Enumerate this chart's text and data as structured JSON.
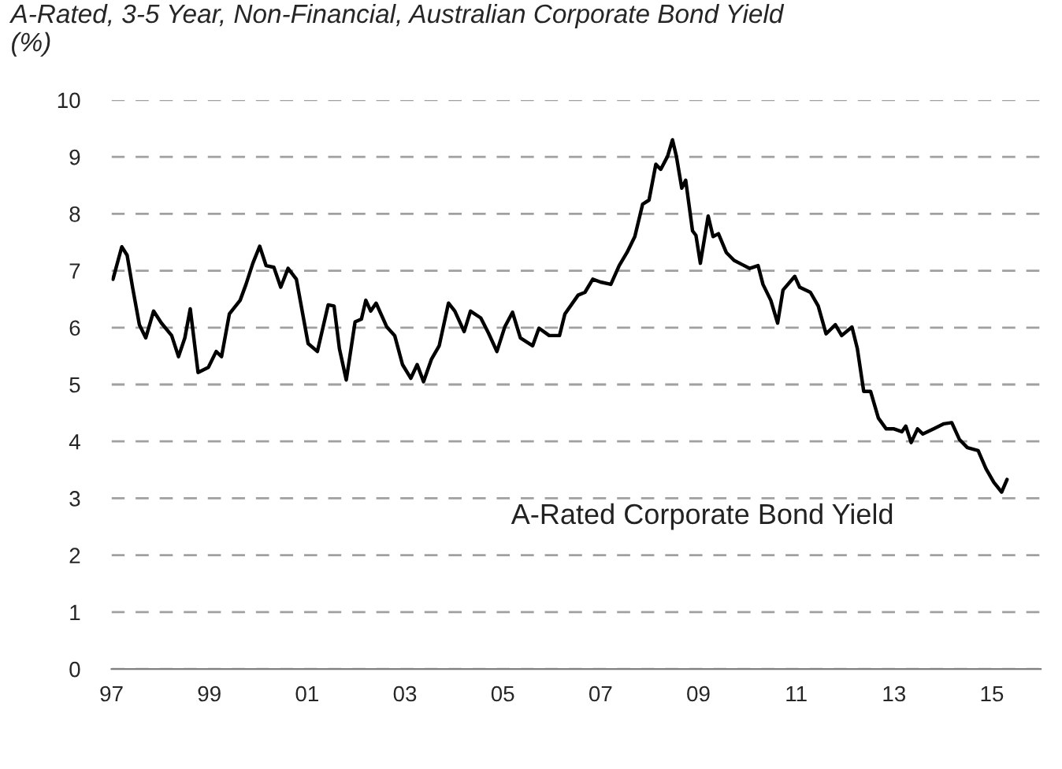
{
  "chart_data": {
    "type": "line",
    "title": "A-Rated, 3-5 Year, Non-Financial, Australian Corporate Bond Yield\n(%)",
    "xlim": [
      1997,
      2016
    ],
    "xticks": [
      {
        "value": 1997,
        "label": "97"
      },
      {
        "value": 1999,
        "label": "99"
      },
      {
        "value": 2001,
        "label": "01"
      },
      {
        "value": 2003,
        "label": "03"
      },
      {
        "value": 2005,
        "label": "05"
      },
      {
        "value": 2007,
        "label": "07"
      },
      {
        "value": 2009,
        "label": "09"
      },
      {
        "value": 2011,
        "label": "11"
      },
      {
        "value": 2013,
        "label": "13"
      },
      {
        "value": 2015,
        "label": "15"
      }
    ],
    "ylim": [
      0,
      10
    ],
    "yticks": [
      0,
      1,
      2,
      3,
      4,
      5,
      6,
      7,
      8,
      9,
      10
    ],
    "grid": "y",
    "legend": false,
    "marker": "none",
    "line_style": "solid",
    "series": [
      {
        "name": "A-Rated Corporate Bond Yield",
        "color": "#000000",
        "x": [
          1997.03,
          1997.21,
          1997.32,
          1997.43,
          1997.57,
          1997.7,
          1997.86,
          1998.02,
          1998.23,
          1998.37,
          1998.5,
          1998.61,
          1998.77,
          1998.98,
          1999.14,
          1999.25,
          1999.41,
          1999.63,
          1999.75,
          1999.89,
          2000.03,
          2000.16,
          2000.32,
          2000.46,
          2000.61,
          2000.78,
          2001.02,
          2001.21,
          2001.43,
          2001.55,
          2001.66,
          2001.8,
          2001.98,
          2002.11,
          2002.2,
          2002.3,
          2002.41,
          2002.63,
          2002.79,
          2002.95,
          2003.12,
          2003.25,
          2003.38,
          2003.54,
          2003.7,
          2003.89,
          2004.02,
          2004.21,
          2004.34,
          2004.55,
          2004.71,
          2004.88,
          2005.04,
          2005.2,
          2005.36,
          2005.61,
          2005.74,
          2005.95,
          2006.16,
          2006.27,
          2006.54,
          2006.68,
          2006.84,
          2007.0,
          2007.21,
          2007.38,
          2007.54,
          2007.7,
          2007.86,
          2007.99,
          2008.13,
          2008.23,
          2008.37,
          2008.47,
          2008.55,
          2008.66,
          2008.74,
          2008.88,
          2008.95,
          2009.04,
          2009.2,
          2009.3,
          2009.41,
          2009.57,
          2009.73,
          2009.89,
          2010.05,
          2010.22,
          2010.32,
          2010.48,
          2010.62,
          2010.73,
          2010.97,
          2011.07,
          2011.29,
          2011.45,
          2011.61,
          2011.8,
          2011.93,
          2012.14,
          2012.25,
          2012.38,
          2012.52,
          2012.68,
          2012.84,
          2013.0,
          2013.16,
          2013.24,
          2013.35,
          2013.48,
          2013.59,
          2013.81,
          2014.02,
          2014.18,
          2014.34,
          2014.5,
          2014.72,
          2014.88,
          2015.04,
          2015.2,
          2015.31
        ],
        "values": [
          6.85,
          7.42,
          7.27,
          6.71,
          6.05,
          5.82,
          6.29,
          6.08,
          5.86,
          5.49,
          5.82,
          6.33,
          5.21,
          5.3,
          5.58,
          5.49,
          6.24,
          6.48,
          6.76,
          7.13,
          7.43,
          7.09,
          7.06,
          6.71,
          7.04,
          6.85,
          5.72,
          5.58,
          6.4,
          6.38,
          5.63,
          5.08,
          6.1,
          6.15,
          6.48,
          6.29,
          6.43,
          6.01,
          5.86,
          5.35,
          5.11,
          5.35,
          5.05,
          5.44,
          5.68,
          6.43,
          6.29,
          5.93,
          6.29,
          6.17,
          5.9,
          5.58,
          6.01,
          6.27,
          5.82,
          5.68,
          5.99,
          5.86,
          5.86,
          6.24,
          6.57,
          6.62,
          6.85,
          6.8,
          6.76,
          7.09,
          7.32,
          7.6,
          8.17,
          8.24,
          8.87,
          8.78,
          9.01,
          9.3,
          9.01,
          8.45,
          8.59,
          7.7,
          7.62,
          7.13,
          7.96,
          7.6,
          7.65,
          7.32,
          7.18,
          7.11,
          7.04,
          7.09,
          6.76,
          6.48,
          6.08,
          6.66,
          6.9,
          6.71,
          6.62,
          6.38,
          5.89,
          6.05,
          5.86,
          6.01,
          5.63,
          4.88,
          4.88,
          4.41,
          4.22,
          4.22,
          4.17,
          4.27,
          3.98,
          4.22,
          4.13,
          4.22,
          4.31,
          4.33,
          4.03,
          3.89,
          3.84,
          3.52,
          3.28,
          3.11,
          3.33
        ]
      }
    ]
  }
}
